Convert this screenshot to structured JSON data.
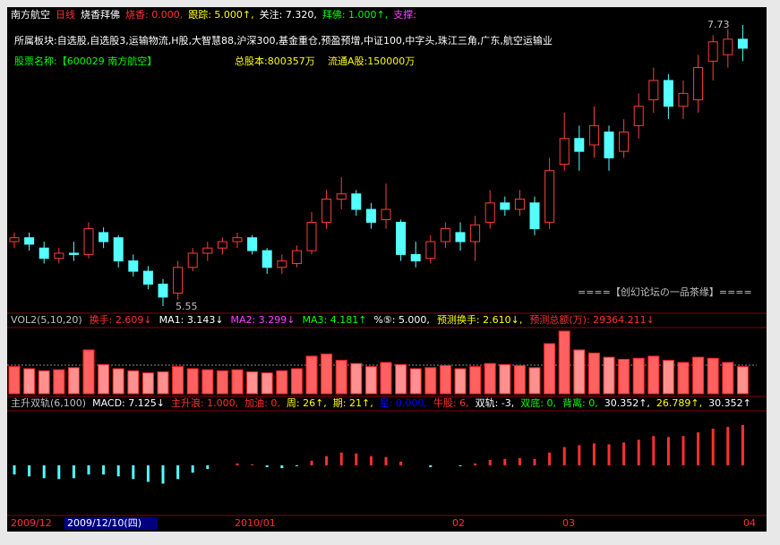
{
  "header_row": [
    {
      "text": "南方航空",
      "color": "#ffffff"
    },
    {
      "text": "日线",
      "color": "#ff3030"
    },
    {
      "text": "烧香拜佛",
      "color": "#ffffff"
    },
    {
      "text": "烧香: 0.000,",
      "color": "#ff3030"
    },
    {
      "text": "跟踪: 5.000↑,",
      "color": "#ffff00"
    },
    {
      "text": "关注: 7.320,",
      "color": "#ffffff"
    },
    {
      "text": "拜佛: 1.000↑,",
      "color": "#00ff00"
    },
    {
      "text": "支撑:",
      "color": "#ff40ff"
    }
  ],
  "sectors_row": "所属板块:自选股,自选股3,运输物流,H股,大智慧88,沪深300,基金重仓,预盈预增,中证100,中字头,珠江三角,广东,航空运输业",
  "info_row": [
    {
      "text": "股票名称:【600029 南方航空】",
      "color": "#00ff00"
    },
    {
      "text": "总股本:800357万",
      "color": "#ffff00"
    },
    {
      "text": "流通A股:150000万",
      "color": "#ffff00"
    }
  ],
  "price_panel": {
    "high": 7.73,
    "low": 5.55,
    "watermark": "====【创幻论坛の一品茶缘】====",
    "candles": [
      [
        6.05,
        6.08,
        6.12,
        6.0
      ],
      [
        6.08,
        6.03,
        6.12,
        5.98
      ],
      [
        6.0,
        5.92,
        6.05,
        5.88
      ],
      [
        5.92,
        5.96,
        6.0,
        5.88
      ],
      [
        5.96,
        5.95,
        6.05,
        5.9
      ],
      [
        5.95,
        6.15,
        6.2,
        5.92
      ],
      [
        6.12,
        6.05,
        6.16,
        6.0
      ],
      [
        6.08,
        5.9,
        6.1,
        5.85
      ],
      [
        5.9,
        5.82,
        5.95,
        5.78
      ],
      [
        5.82,
        5.72,
        5.86,
        5.68
      ],
      [
        5.72,
        5.62,
        5.76,
        5.55
      ],
      [
        5.65,
        5.85,
        5.9,
        5.6
      ],
      [
        5.85,
        5.96,
        6.0,
        5.82
      ],
      [
        5.96,
        6.0,
        6.05,
        5.9
      ],
      [
        6.0,
        6.05,
        6.08,
        5.95
      ],
      [
        6.05,
        6.08,
        6.12,
        6.0
      ],
      [
        6.08,
        5.98,
        6.1,
        5.95
      ],
      [
        5.98,
        5.85,
        6.0,
        5.8
      ],
      [
        5.85,
        5.9,
        5.95,
        5.8
      ],
      [
        5.88,
        5.98,
        6.02,
        5.85
      ],
      [
        5.98,
        6.2,
        6.28,
        5.95
      ],
      [
        6.2,
        6.38,
        6.45,
        6.15
      ],
      [
        6.38,
        6.42,
        6.55,
        6.3
      ],
      [
        6.42,
        6.3,
        6.45,
        6.25
      ],
      [
        6.3,
        6.2,
        6.35,
        6.15
      ],
      [
        6.22,
        6.3,
        6.5,
        6.15
      ],
      [
        6.2,
        5.95,
        6.22,
        5.9
      ],
      [
        5.95,
        5.9,
        6.05,
        5.85
      ],
      [
        5.92,
        6.05,
        6.1,
        5.88
      ],
      [
        6.05,
        6.15,
        6.2,
        6.0
      ],
      [
        6.12,
        6.05,
        6.2,
        5.98
      ],
      [
        6.05,
        6.18,
        6.25,
        5.9
      ],
      [
        6.2,
        6.35,
        6.45,
        6.15
      ],
      [
        6.35,
        6.3,
        6.4,
        6.25
      ],
      [
        6.3,
        6.38,
        6.45,
        6.25
      ],
      [
        6.35,
        6.15,
        6.4,
        6.1
      ],
      [
        6.2,
        6.6,
        6.7,
        6.15
      ],
      [
        6.65,
        6.85,
        7.05,
        6.6
      ],
      [
        6.85,
        6.75,
        6.95,
        6.6
      ],
      [
        6.8,
        6.95,
        7.1,
        6.7
      ],
      [
        6.9,
        6.7,
        6.95,
        6.6
      ],
      [
        6.75,
        6.9,
        7.0,
        6.7
      ],
      [
        6.95,
        7.1,
        7.2,
        6.85
      ],
      [
        7.15,
        7.3,
        7.4,
        7.05
      ],
      [
        7.3,
        7.1,
        7.35,
        7.0
      ],
      [
        7.1,
        7.2,
        7.3,
        7.0
      ],
      [
        7.15,
        7.4,
        7.5,
        7.05
      ],
      [
        7.45,
        7.6,
        7.65,
        7.3
      ],
      [
        7.5,
        7.62,
        7.7,
        7.4
      ],
      [
        7.62,
        7.55,
        7.73,
        7.45
      ]
    ]
  },
  "volume_row": [
    {
      "text": "VOL2(5,10,20)",
      "color": "#c0c0c0"
    },
    {
      "text": "换手: 2.609↓",
      "color": "#ff3030"
    },
    {
      "text": "MA1: 3.143↓",
      "color": "#ffffff"
    },
    {
      "text": "MA2: 3.299↓",
      "color": "#ff40ff"
    },
    {
      "text": "MA3: 4.181↑",
      "color": "#00ff00"
    },
    {
      "text": "%⑤: 5.000,",
      "color": "#ffffff"
    },
    {
      "text": "预测换手: 2.610↓,",
      "color": "#ffff00"
    },
    {
      "text": "预测总额(万): 29364.211↓",
      "color": "#ff3030"
    }
  ],
  "volume_panel": {
    "turnover": [
      2.6,
      2.4,
      2.2,
      2.3,
      2.5,
      4.2,
      2.8,
      2.4,
      2.2,
      2.0,
      2.1,
      2.6,
      2.4,
      2.3,
      2.2,
      2.3,
      2.1,
      2.0,
      2.2,
      2.4,
      3.6,
      3.8,
      3.2,
      2.9,
      2.6,
      3.0,
      2.8,
      2.4,
      2.5,
      2.7,
      2.4,
      2.6,
      2.9,
      2.8,
      2.7,
      2.5,
      4.8,
      6.0,
      4.2,
      3.9,
      3.5,
      3.3,
      3.4,
      3.6,
      3.2,
      3.0,
      3.5,
      3.4,
      3.0,
      2.6
    ]
  },
  "macd_row": [
    {
      "text": "主升双轨(6,100)",
      "color": "#c0c0c0"
    },
    {
      "text": "MACD: 7.125↓",
      "color": "#ffffff"
    },
    {
      "text": "主升浪: 1.000,",
      "color": "#ff3030"
    },
    {
      "text": "加油: 0,",
      "color": "#ff3030"
    },
    {
      "text": "周: 26↑,",
      "color": "#ffff00"
    },
    {
      "text": "期: 21↑,",
      "color": "#ffff00"
    },
    {
      "text": "星: 0.000,",
      "color": "#0000ff"
    },
    {
      "text": "牛股: 6,",
      "color": "#ff3030"
    },
    {
      "text": "双轨: -3,",
      "color": "#ffffff"
    },
    {
      "text": "双底: 0,",
      "color": "#00ff00"
    },
    {
      "text": "背离: 0,",
      "color": "#00ff00"
    },
    {
      "text": "30.352↑,",
      "color": "#ffffff"
    },
    {
      "text": "26.789↑,",
      "color": "#ffff00"
    },
    {
      "text": "30.352↑",
      "color": "#ffffff"
    }
  ],
  "macd_panel": {
    "histogram": [
      -0.1,
      -0.12,
      -0.14,
      -0.15,
      -0.14,
      -0.1,
      -0.1,
      -0.12,
      -0.15,
      -0.18,
      -0.2,
      -0.15,
      -0.08,
      -0.04,
      0.0,
      0.02,
      0.01,
      -0.02,
      -0.03,
      -0.01,
      0.05,
      0.1,
      0.14,
      0.13,
      0.1,
      0.09,
      0.04,
      0.0,
      -0.02,
      0.0,
      -0.01,
      0.02,
      0.06,
      0.07,
      0.08,
      0.07,
      0.14,
      0.2,
      0.22,
      0.24,
      0.23,
      0.25,
      0.28,
      0.32,
      0.31,
      0.32,
      0.36,
      0.4,
      0.42,
      0.44
    ]
  },
  "dates": [
    "2009/12",
    "2009/12/10(四)",
    "2010/01",
    "02",
    "03",
    "04"
  ]
}
